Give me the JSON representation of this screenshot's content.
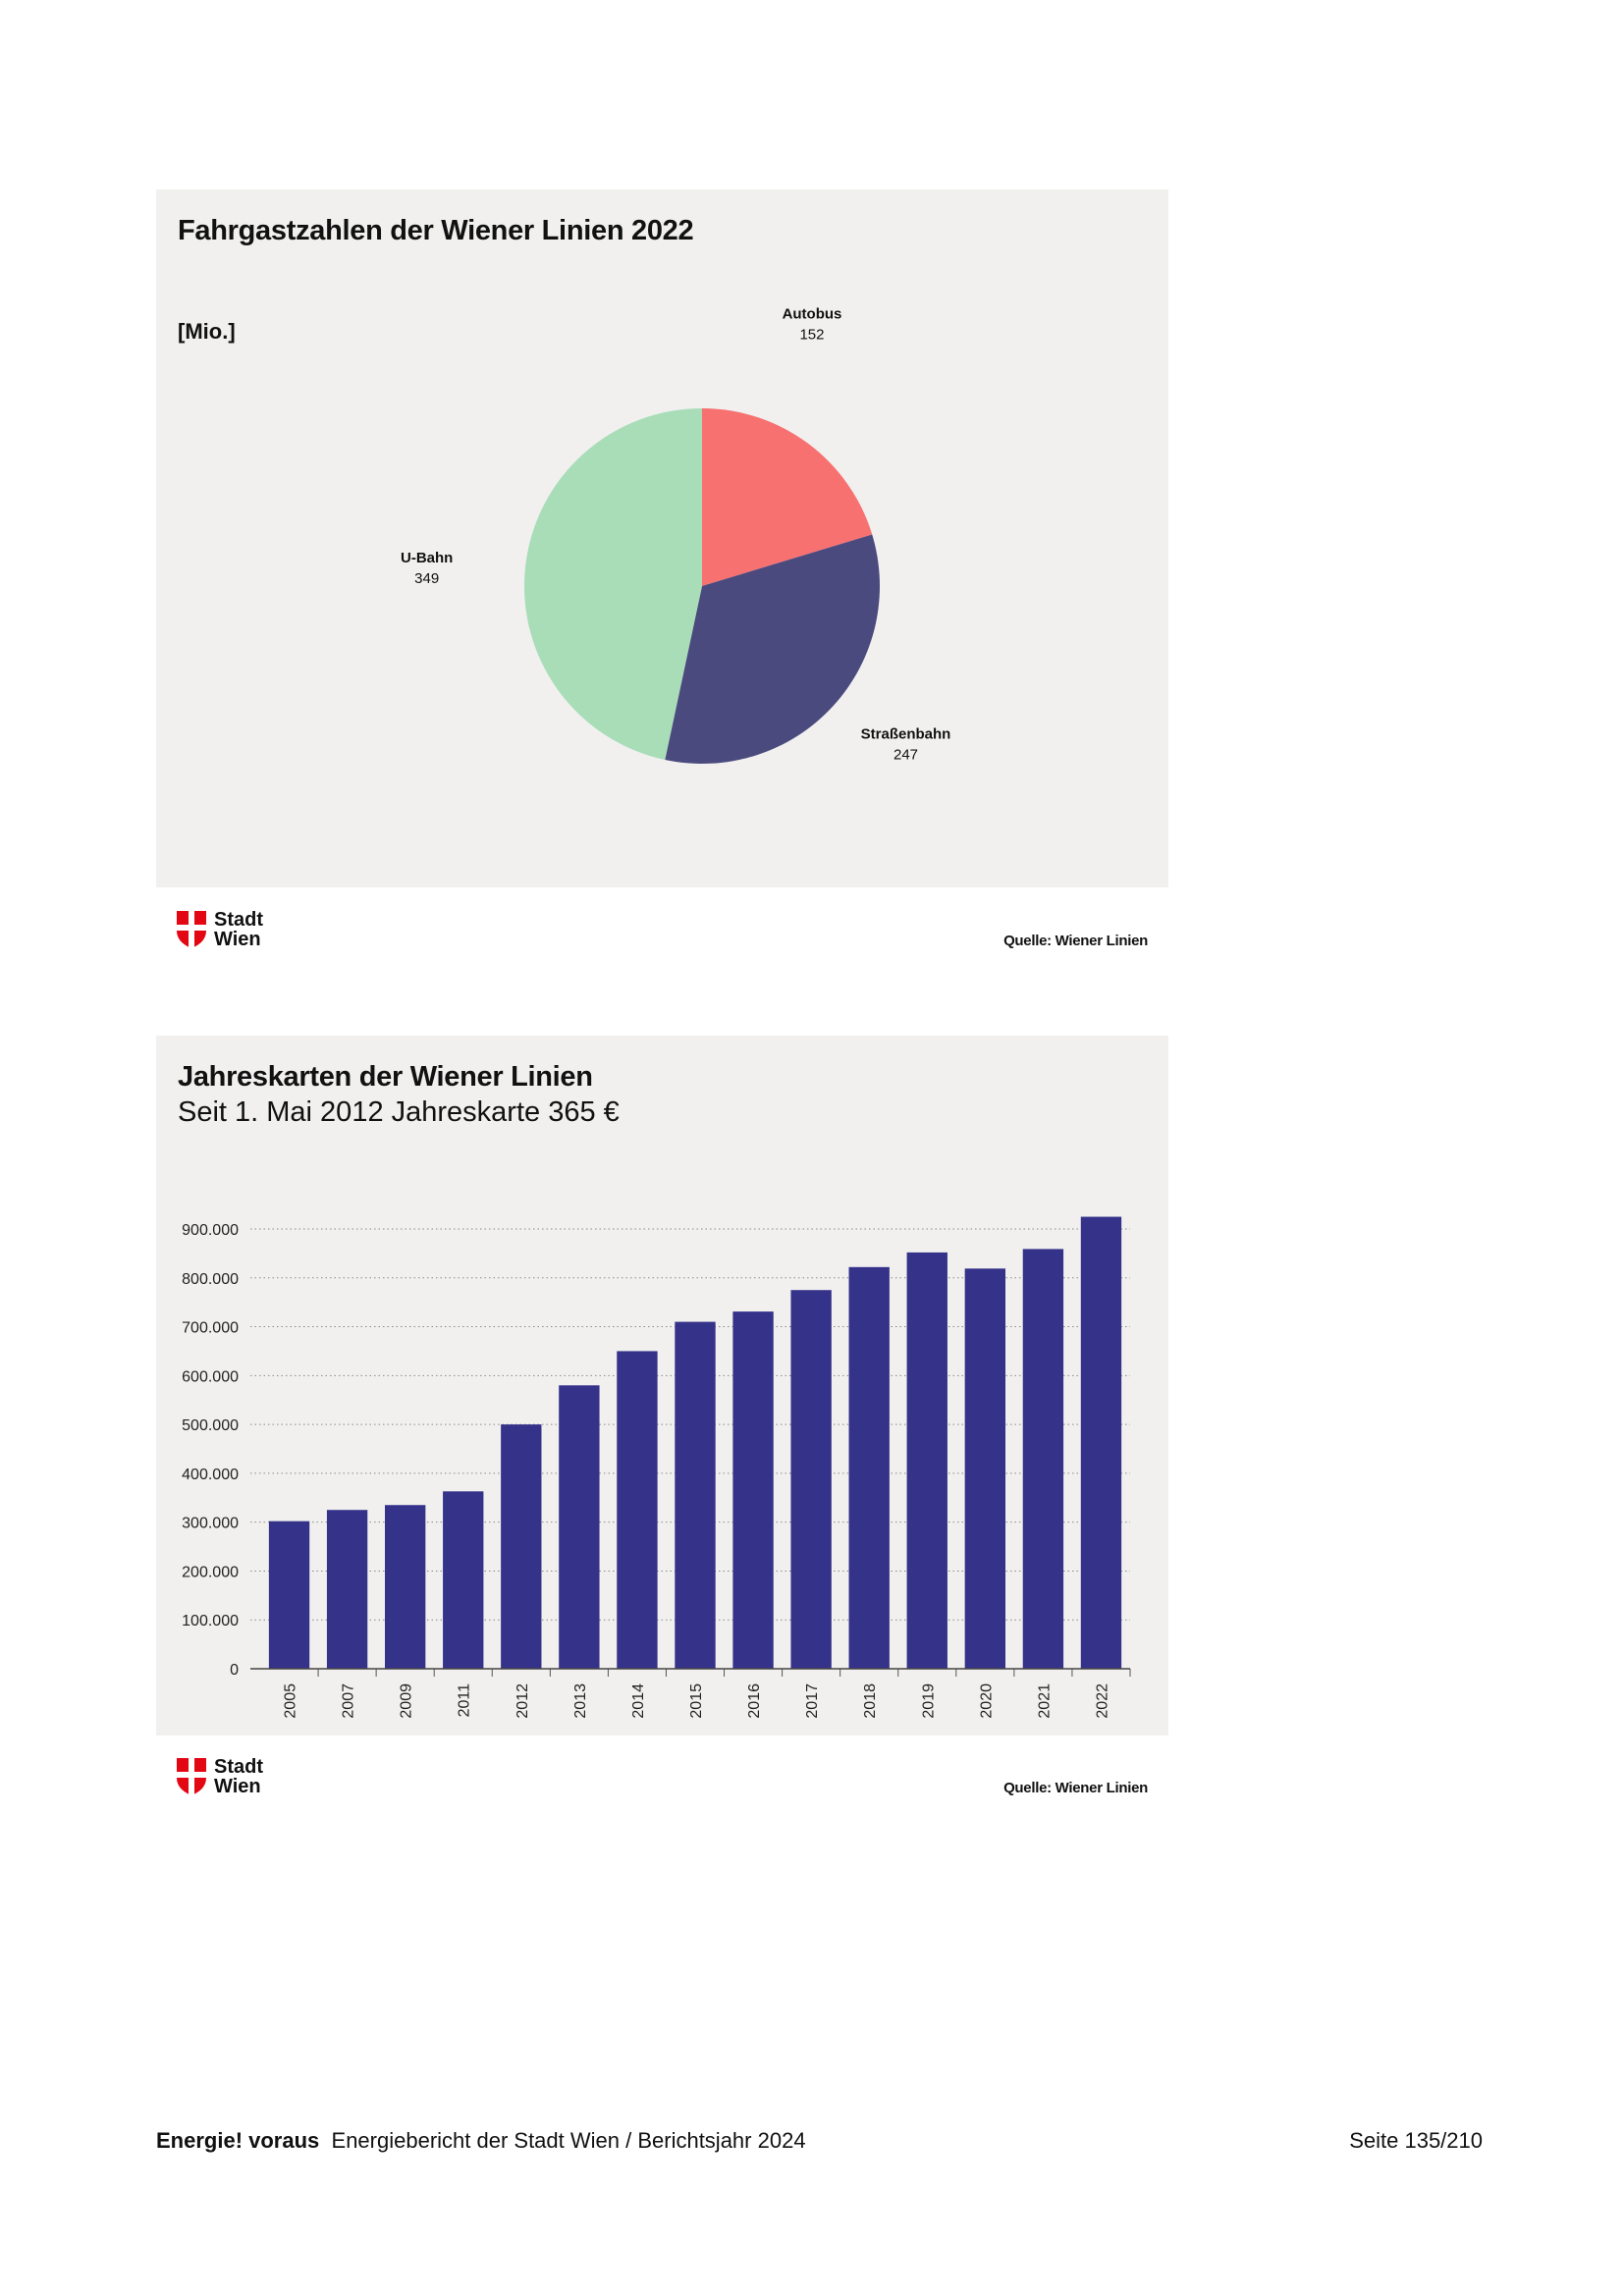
{
  "pie_chart": {
    "title": "Fahrgastzahlen der Wiener Linien 2022",
    "unit": "[Mio.]",
    "source": "Quelle: Wiener Linien"
  },
  "bar_chart": {
    "title": "Jahreskarten der Wiener Linien",
    "subtitle": "Seit 1. Mai 2012 Jahreskarte 365 €",
    "source": "Quelle: Wiener Linien"
  },
  "logo": {
    "line1": "Stadt",
    "line2": "Wien"
  },
  "footer": {
    "brand": "Energie! voraus",
    "text": "Energiebericht der Stadt Wien / Berichtsjahr 2024",
    "page": "Seite 135/210"
  },
  "chart_data": [
    {
      "type": "pie",
      "title": "Fahrgastzahlen der Wiener Linien 2022",
      "unit": "[Mio.]",
      "slices": [
        {
          "label": "Autobus",
          "value": 152,
          "display": "152",
          "color": "#f87171"
        },
        {
          "label": "Straßenbahn",
          "value": 247,
          "display": "247",
          "color": "#4b4a7e"
        },
        {
          "label": "U-Bahn",
          "value": 349,
          "display": "349",
          "color": "#a8ddb8"
        }
      ]
    },
    {
      "type": "bar",
      "title": "Jahreskarten der Wiener Linien",
      "subtitle": "Seit 1. Mai 2012 Jahreskarte 365 €",
      "categories": [
        "2005",
        "2007",
        "2009",
        "2011",
        "2012",
        "2013",
        "2014",
        "2015",
        "2016",
        "2017",
        "2018",
        "2019",
        "2020",
        "2021",
        "2022"
      ],
      "values": [
        302000,
        325000,
        335000,
        363000,
        500000,
        580000,
        650000,
        710000,
        731000,
        775000,
        822000,
        852000,
        819000,
        859000,
        925000
      ],
      "ylim": [
        0,
        900000
      ],
      "yticks": [
        0,
        100000,
        200000,
        300000,
        400000,
        500000,
        600000,
        700000,
        800000,
        900000
      ],
      "ytick_labels": [
        "0",
        "100.000",
        "200.000",
        "300.000",
        "400.000",
        "500.000",
        "600.000",
        "700.000",
        "800.000",
        "900.000"
      ],
      "grid": "dotted",
      "color": "#35328a"
    }
  ]
}
